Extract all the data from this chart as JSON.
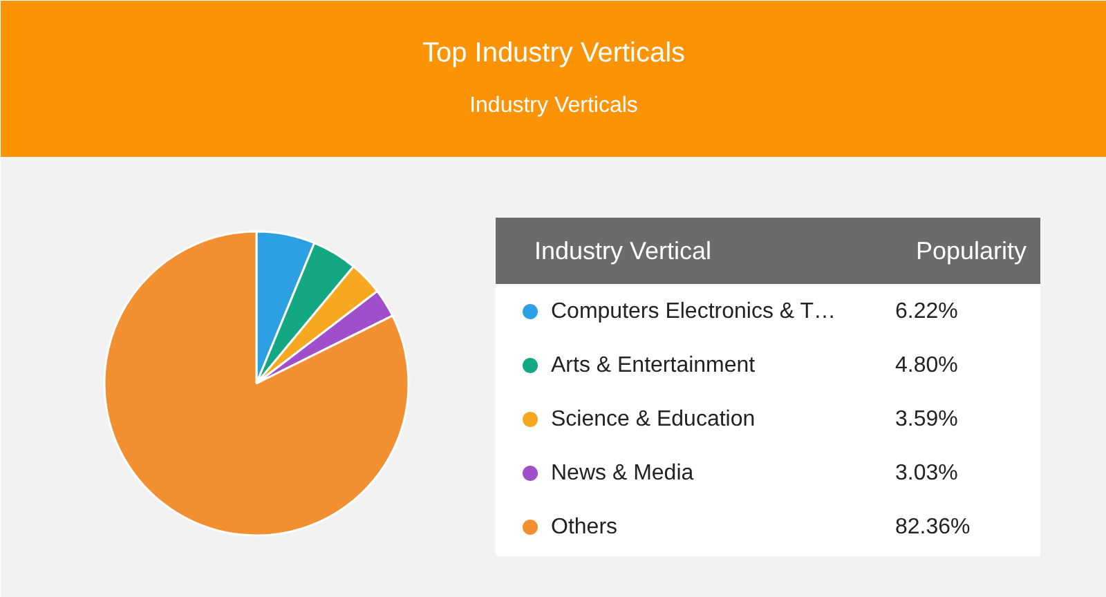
{
  "chart_data": {
    "type": "pie",
    "title": "Top Industry Verticals",
    "subtitle": "Industry Verticals",
    "legend_title": "Industry Vertical",
    "annotations": [
      "Popularity"
    ],
    "categories": [
      "Computers Electronics & T…",
      "Arts & Entertainment",
      "Science & Education",
      "News & Media",
      "Others"
    ],
    "values": [
      6.22,
      4.8,
      3.59,
      3.03,
      82.36
    ],
    "colors": [
      "#2d9fe3",
      "#13a883",
      "#f6a821",
      "#a04fcb",
      "#f28f30"
    ],
    "value_labels": [
      "6.22%",
      "4.80%",
      "3.59%",
      "3.03%",
      "82.36%"
    ],
    "legend": "right"
  }
}
